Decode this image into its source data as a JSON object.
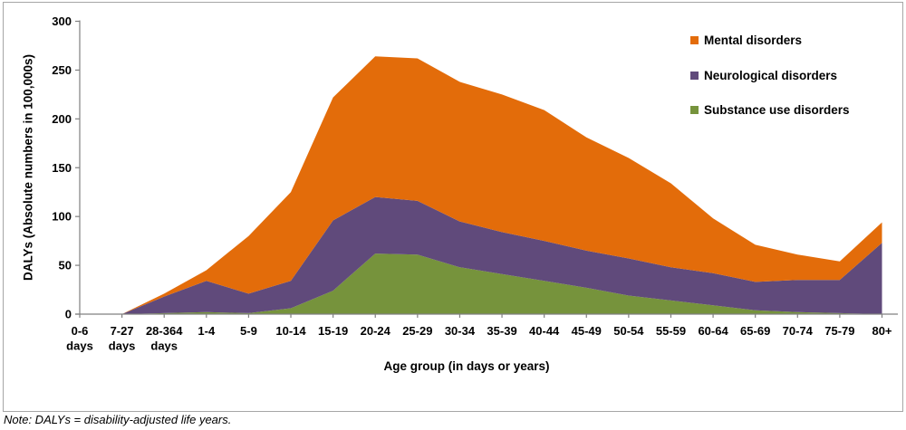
{
  "note": "Note: DALYs = disability-adjusted life years.",
  "axes": {
    "y_title": "DALYs (Absolute numbers in 100,000s)",
    "x_title": "Age group (in days or years)"
  },
  "chart_data": {
    "type": "area",
    "stacked": true,
    "title": "",
    "xlabel": "Age group (in days or years)",
    "ylabel": "DALYs (Absolute numbers in 100,000s)",
    "ylim": [
      0,
      300
    ],
    "ytick_step": 50,
    "grid": false,
    "legend_position": "top-right-inside",
    "categories": [
      "0-6\ndays",
      "7-27\ndays",
      "28-364\ndays",
      "1-4",
      "5-9",
      "10-14",
      "15-19",
      "20-24",
      "25-29",
      "30-34",
      "35-39",
      "40-44",
      "45-49",
      "50-54",
      "55-59",
      "60-64",
      "65-69",
      "70-74",
      "75-79",
      "80+"
    ],
    "series": [
      {
        "name": "Mental disorders",
        "color": "#E36C0A",
        "values": [
          0,
          0,
          3,
          11,
          59,
          91,
          126,
          144,
          146,
          143,
          141,
          134,
          116,
          103,
          86,
          56,
          38,
          26,
          19,
          21
        ]
      },
      {
        "name": "Neurological disorders",
        "color": "#604A7B",
        "values": [
          0,
          0,
          17,
          32,
          20,
          28,
          72,
          58,
          55,
          47,
          43,
          41,
          38,
          38,
          34,
          33,
          29,
          33,
          34,
          73
        ]
      },
      {
        "name": "Substance use disorders",
        "color": "#76933C",
        "values": [
          0,
          0,
          1,
          2,
          1,
          6,
          24,
          62,
          61,
          48,
          41,
          34,
          27,
          19,
          14,
          9,
          4,
          2,
          1,
          0
        ]
      }
    ],
    "stack_order_bottom_to_top": [
      "Substance use disorders",
      "Neurological disorders",
      "Mental disorders"
    ],
    "axis_color": "#808080",
    "border_color": "#a6a6a6"
  }
}
